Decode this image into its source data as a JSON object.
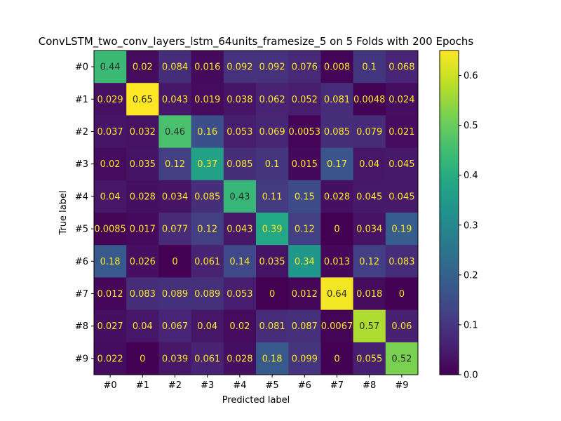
{
  "chart_data": {
    "type": "heatmap",
    "title": "ConvLSTM_two_conv_layers_lstm_64units_framesize_5 on 5 Folds with 200 Epochs",
    "xlabel": "Predicted label",
    "ylabel": "True label",
    "x_categories": [
      "#0",
      "#1",
      "#2",
      "#3",
      "#4",
      "#5",
      "#6",
      "#7",
      "#8",
      "#9"
    ],
    "y_categories": [
      "#0",
      "#1",
      "#2",
      "#3",
      "#4",
      "#5",
      "#6",
      "#7",
      "#8",
      "#9"
    ],
    "values": [
      [
        0.44,
        0.02,
        0.084,
        0.016,
        0.092,
        0.092,
        0.076,
        0.008,
        0.1,
        0.068
      ],
      [
        0.029,
        0.65,
        0.043,
        0.019,
        0.038,
        0.062,
        0.052,
        0.081,
        0.0048,
        0.024
      ],
      [
        0.037,
        0.032,
        0.46,
        0.16,
        0.053,
        0.069,
        0.0053,
        0.085,
        0.079,
        0.021
      ],
      [
        0.02,
        0.035,
        0.12,
        0.37,
        0.085,
        0.1,
        0.015,
        0.17,
        0.04,
        0.045
      ],
      [
        0.04,
        0.028,
        0.034,
        0.085,
        0.43,
        0.11,
        0.15,
        0.028,
        0.045,
        0.045
      ],
      [
        0.0085,
        0.017,
        0.077,
        0.12,
        0.043,
        0.39,
        0.12,
        0,
        0.034,
        0.19
      ],
      [
        0.18,
        0.026,
        0,
        0.061,
        0.14,
        0.035,
        0.34,
        0.013,
        0.12,
        0.083
      ],
      [
        0.012,
        0.083,
        0.089,
        0.089,
        0.053,
        0,
        0.012,
        0.64,
        0.018,
        0
      ],
      [
        0.027,
        0.04,
        0.067,
        0.04,
        0.02,
        0.081,
        0.087,
        0.0067,
        0.57,
        0.06
      ],
      [
        0.022,
        0,
        0.039,
        0.061,
        0.028,
        0.18,
        0.099,
        0,
        0.055,
        0.52
      ]
    ],
    "colormap": "viridis",
    "colorbar": {
      "range": [
        0,
        0.65
      ],
      "ticks": [
        0.0,
        0.1,
        0.2,
        0.3,
        0.4,
        0.5,
        0.6
      ],
      "tick_labels": [
        "0.0",
        "0.1",
        "0.2",
        "0.3",
        "0.4",
        "0.5",
        "0.6"
      ]
    },
    "grid": false
  }
}
